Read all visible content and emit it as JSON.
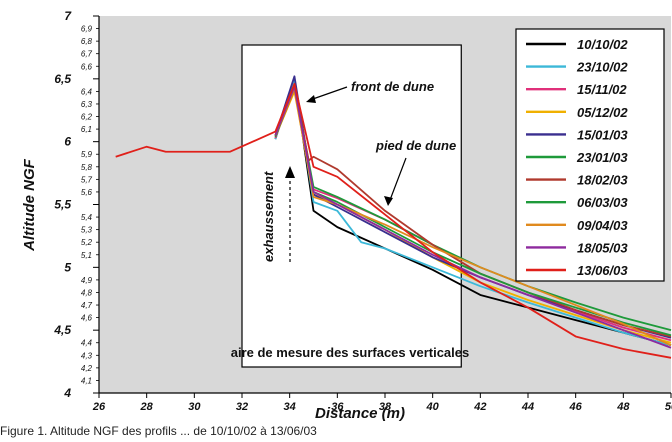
{
  "chart_data": {
    "type": "line",
    "xlabel": "Distance (m)",
    "ylabel": "Altitude NGF",
    "xlim": [
      26,
      50
    ],
    "ylim": [
      4,
      7
    ],
    "x_major_ticks": [
      "26",
      "28",
      "30",
      "32",
      "34",
      "36",
      "38",
      "40",
      "42",
      "44",
      "46",
      "48",
      "50"
    ],
    "y_major_ticks": [
      "4",
      "4,5",
      "5",
      "5,5",
      "6",
      "6,5",
      "7"
    ],
    "y_minor_ticks": [
      "4,1",
      "4,2",
      "4,3",
      "4,4",
      "4,6",
      "4,7",
      "4,8",
      "4,9",
      "5,1",
      "5,2",
      "5,3",
      "5,4",
      "5,6",
      "5,7",
      "5,8",
      "5,9",
      "6,1",
      "6,2",
      "6,3",
      "6,4",
      "6,6",
      "6,7",
      "6,8",
      "6,9"
    ],
    "grid": false,
    "legend_position": "top-right",
    "annotations": {
      "box_label": "aire de mesure des surfaces verticales",
      "box_x_range": [
        32,
        41.2
      ],
      "front": "front de dune",
      "pied": "pied de dune",
      "exhaussement": "exhaussement"
    },
    "series": [
      {
        "name": "10/10/02",
        "color": "#000000",
        "x": [
          33.4,
          34.2,
          35.0,
          36.0,
          38.0,
          40.0,
          42.0,
          44.0,
          46.0,
          48.0,
          50.0
        ],
        "y": [
          6.02,
          6.5,
          5.45,
          5.32,
          5.15,
          4.98,
          4.78,
          4.68,
          4.58,
          4.48,
          4.38
        ]
      },
      {
        "name": "23/10/02",
        "color": "#3cb8d8",
        "x": [
          33.4,
          34.2,
          35.0,
          36.0,
          37.0,
          38.0,
          40.0,
          42.0,
          44.0,
          46.0,
          48.0,
          50.0
        ],
        "y": [
          6.02,
          6.48,
          5.52,
          5.45,
          5.2,
          5.15,
          5.0,
          4.85,
          4.72,
          4.6,
          4.48,
          4.38
        ]
      },
      {
        "name": "15/11/02",
        "color": "#e0307a",
        "x": [
          33.4,
          34.2,
          35.0,
          36.0,
          38.0,
          40.0,
          42.0,
          44.0,
          46.0,
          48.0,
          50.0
        ],
        "y": [
          6.03,
          6.45,
          5.62,
          5.55,
          5.38,
          5.18,
          4.95,
          4.8,
          4.65,
          4.52,
          4.42
        ]
      },
      {
        "name": "05/12/02",
        "color": "#f0b000",
        "x": [
          33.4,
          34.2,
          35.0,
          36.0,
          38.0,
          40.0,
          42.0,
          44.0,
          46.0,
          48.0,
          50.0
        ],
        "y": [
          6.04,
          6.4,
          5.58,
          5.5,
          5.3,
          5.08,
          4.88,
          4.74,
          4.62,
          4.5,
          4.4
        ]
      },
      {
        "name": "15/01/03",
        "color": "#3a2f8f",
        "x": [
          33.4,
          34.2,
          35.0,
          36.0,
          38.0,
          40.0,
          42.0,
          44.0,
          46.0,
          48.0,
          50.0
        ],
        "y": [
          6.05,
          6.52,
          5.58,
          5.48,
          5.28,
          5.08,
          4.92,
          4.78,
          4.66,
          4.54,
          4.44
        ]
      },
      {
        "name": "23/01/03",
        "color": "#1e9a3a",
        "x": [
          33.4,
          34.2,
          35.0,
          36.0,
          38.0,
          40.0,
          42.0,
          44.0,
          46.0,
          48.0,
          50.0
        ],
        "y": [
          6.05,
          6.44,
          5.64,
          5.56,
          5.38,
          5.18,
          5.0,
          4.85,
          4.72,
          4.6,
          4.5
        ]
      },
      {
        "name": "18/02/03",
        "color": "#b03a2e",
        "x": [
          33.4,
          34.2,
          34.8,
          35.0,
          36.0,
          38.0,
          40.0,
          42.0,
          44.0,
          46.0,
          48.0,
          50.0
        ],
        "y": [
          6.04,
          6.42,
          5.85,
          5.88,
          5.78,
          5.45,
          5.18,
          4.95,
          4.8,
          4.66,
          4.54,
          4.45
        ]
      },
      {
        "name": "06/03/03",
        "color": "#1e9a3a",
        "x": [
          33.4,
          34.2,
          35.0,
          36.0,
          38.0,
          40.0,
          42.0,
          44.0,
          46.0,
          48.0,
          50.0
        ],
        "y": [
          6.04,
          6.43,
          5.6,
          5.52,
          5.32,
          5.12,
          4.95,
          4.8,
          4.68,
          4.56,
          4.46
        ]
      },
      {
        "name": "09/04/03",
        "color": "#e08a1e",
        "x": [
          33.4,
          34.2,
          35.0,
          36.0,
          38.0,
          40.0,
          42.0,
          44.0,
          46.0,
          48.0,
          50.0
        ],
        "y": [
          6.05,
          6.42,
          5.56,
          5.5,
          5.34,
          5.16,
          5.0,
          4.85,
          4.7,
          4.55,
          4.38
        ]
      },
      {
        "name": "18/05/03",
        "color": "#8e2a9e",
        "x": [
          33.4,
          34.2,
          35.0,
          36.0,
          38.0,
          40.0,
          42.0,
          44.0,
          46.0,
          48.0,
          50.0
        ],
        "y": [
          6.05,
          6.44,
          5.6,
          5.5,
          5.3,
          5.1,
          4.92,
          4.78,
          4.64,
          4.5,
          4.36
        ]
      },
      {
        "name": "13/06/03",
        "color": "#e0201a",
        "x": [
          26.7,
          28.0,
          28.8,
          30.0,
          31.5,
          33.4,
          34.2,
          35.0,
          36.0,
          38.0,
          40.0,
          42.0,
          44.0,
          46.0,
          48.0,
          50.0
        ],
        "y": [
          5.88,
          5.96,
          5.92,
          5.92,
          5.92,
          6.08,
          6.46,
          5.8,
          5.72,
          5.42,
          5.12,
          4.88,
          4.68,
          4.45,
          4.35,
          4.28
        ]
      }
    ]
  },
  "caption_fragment": "Figure 1. Altitude NGF des profils ... de 10/10/02 à 13/06/03"
}
